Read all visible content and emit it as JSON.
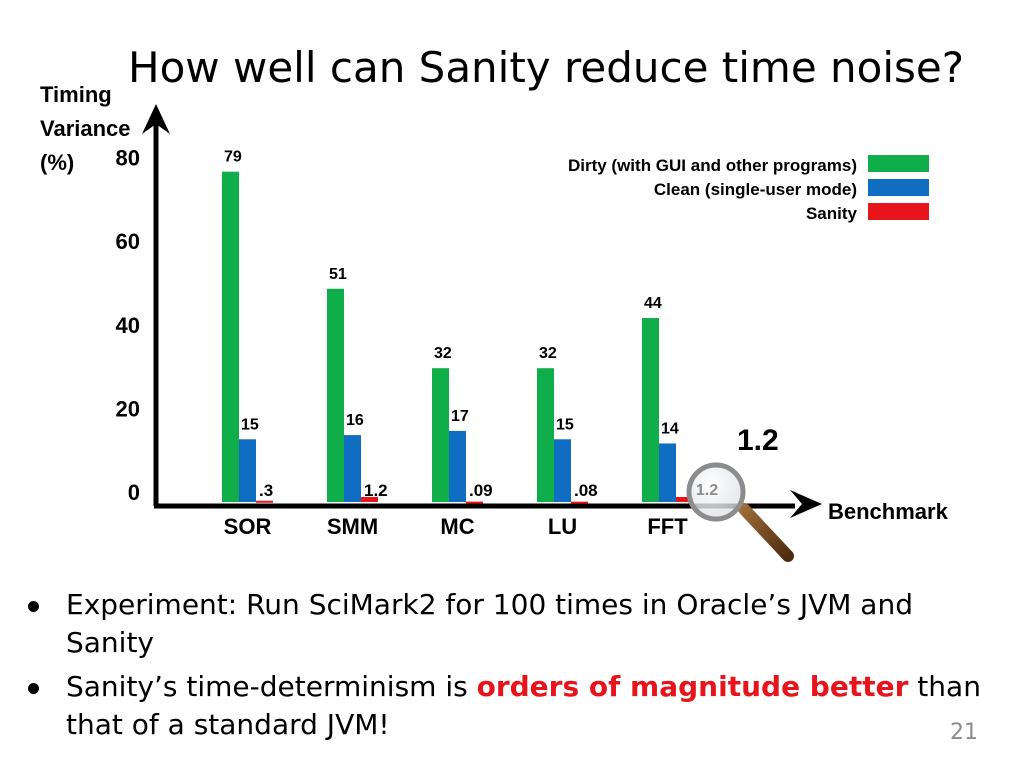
{
  "slide": {
    "title": "How well can Sanity reduce time noise?",
    "page_number": "21",
    "bullets": [
      {
        "parts": [
          "Experiment: Run SciMark2 for 100 times in Oracle’s JVM and Sanity"
        ]
      },
      {
        "parts": [
          "Sanity’s time-determinism is ",
          "orders of magnitude better",
          " than that of a standard JVM!"
        ]
      }
    ]
  },
  "chart_data": {
    "type": "bar",
    "ylabel_lines": [
      "Timing",
      "Variance",
      "(%)"
    ],
    "xlabel": "Benchmark",
    "categories": [
      "SOR",
      "SMM",
      "MC",
      "LU",
      "FFT"
    ],
    "yticks": [
      0,
      20,
      40,
      60,
      80
    ],
    "ylim": [
      0,
      85
    ],
    "series": [
      {
        "name": "Dirty (with GUI and other programs)",
        "color": "#0fae4b",
        "values": [
          79,
          51,
          32,
          32,
          44
        ],
        "labels": [
          "79",
          "51",
          "32",
          "32",
          "44"
        ]
      },
      {
        "name": "Clean (single-user mode)",
        "color": "#0f6ec2",
        "values": [
          15,
          16,
          17,
          15,
          14
        ],
        "labels": [
          "15",
          "16",
          "17",
          "15",
          "14"
        ]
      },
      {
        "name": "Sanity",
        "color": "#e8141b",
        "values": [
          0.3,
          1.2,
          0.09,
          0.08,
          1.2
        ],
        "labels": [
          ".3",
          "1.2",
          ".09",
          ".08",
          "1.2"
        ]
      }
    ],
    "legend_position": "top-right",
    "annotation": {
      "text": "1.2",
      "target": "FFT Sanity bar (magnified)"
    }
  }
}
